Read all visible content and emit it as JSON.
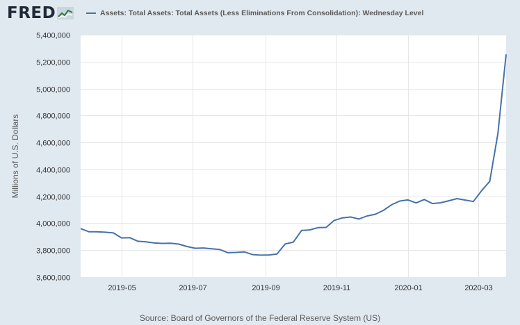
{
  "header": {
    "logo_text": "FRED",
    "legend_label": "Assets: Total Assets: Total Assets (Less Eliminations From Consolidation): Wednesday Level"
  },
  "colors": {
    "background": "#e1e9f0",
    "plot_bg": "#ffffff",
    "series": "#4572a7",
    "grid": "#e6e6e6"
  },
  "source": "Source: Board of Governors of the Federal Reserve System (US)",
  "chart_data": {
    "type": "line",
    "title": "",
    "xlabel": "",
    "ylabel": "Millions of U.S. Dollars",
    "ylim": [
      3600000,
      5400000
    ],
    "yticks": [
      3600000,
      3800000,
      4000000,
      4200000,
      4400000,
      4600000,
      4800000,
      5000000,
      5200000,
      5400000
    ],
    "ytick_labels": [
      "3,600,000",
      "3,800,000",
      "4,000,000",
      "4,200,000",
      "4,400,000",
      "4,600,000",
      "4,800,000",
      "5,000,000",
      "5,200,000",
      "5,400,000"
    ],
    "xlim": [
      "2019-03-27",
      "2020-03-25"
    ],
    "xticks": [
      "2019-05-01",
      "2019-07-01",
      "2019-09-01",
      "2019-11-01",
      "2020-01-01",
      "2020-03-01"
    ],
    "xtick_labels": [
      "2019-05",
      "2019-07",
      "2019-09",
      "2019-11",
      "2020-01",
      "2020-03"
    ],
    "grid": true,
    "legend": "top",
    "series": [
      {
        "name": "Assets: Total Assets: Total Assets (Less Eliminations From Consolidation): Wednesday Level",
        "x": [
          "2019-03-27",
          "2019-04-03",
          "2019-04-10",
          "2019-04-17",
          "2019-04-24",
          "2019-05-01",
          "2019-05-08",
          "2019-05-15",
          "2019-05-22",
          "2019-05-29",
          "2019-06-05",
          "2019-06-12",
          "2019-06-19",
          "2019-06-26",
          "2019-07-03",
          "2019-07-10",
          "2019-07-17",
          "2019-07-24",
          "2019-07-31",
          "2019-08-07",
          "2019-08-14",
          "2019-08-21",
          "2019-08-28",
          "2019-09-04",
          "2019-09-11",
          "2019-09-18",
          "2019-09-25",
          "2019-10-02",
          "2019-10-09",
          "2019-10-16",
          "2019-10-23",
          "2019-10-30",
          "2019-11-06",
          "2019-11-13",
          "2019-11-20",
          "2019-11-27",
          "2019-12-04",
          "2019-12-11",
          "2019-12-18",
          "2019-12-25",
          "2020-01-01",
          "2020-01-08",
          "2020-01-15",
          "2020-01-22",
          "2020-01-29",
          "2020-02-05",
          "2020-02-12",
          "2020-02-19",
          "2020-02-26",
          "2020-03-04",
          "2020-03-11",
          "2020-03-18",
          "2020-03-25"
        ],
        "values": [
          3960000,
          3937000,
          3937000,
          3933000,
          3928000,
          3891000,
          3893000,
          3866000,
          3862000,
          3853000,
          3850000,
          3851000,
          3845000,
          3827000,
          3814000,
          3816000,
          3810000,
          3805000,
          3781000,
          3783000,
          3787000,
          3767000,
          3763000,
          3764000,
          3772000,
          3846000,
          3860000,
          3946000,
          3950000,
          3967000,
          3969000,
          4021000,
          4040000,
          4046000,
          4031000,
          4054000,
          4066000,
          4095000,
          4137000,
          4165000,
          4173000,
          4151000,
          4176000,
          4146000,
          4152000,
          4167000,
          4183000,
          4172000,
          4161000,
          4241000,
          4312000,
          4666000,
          5254000
        ]
      }
    ]
  }
}
